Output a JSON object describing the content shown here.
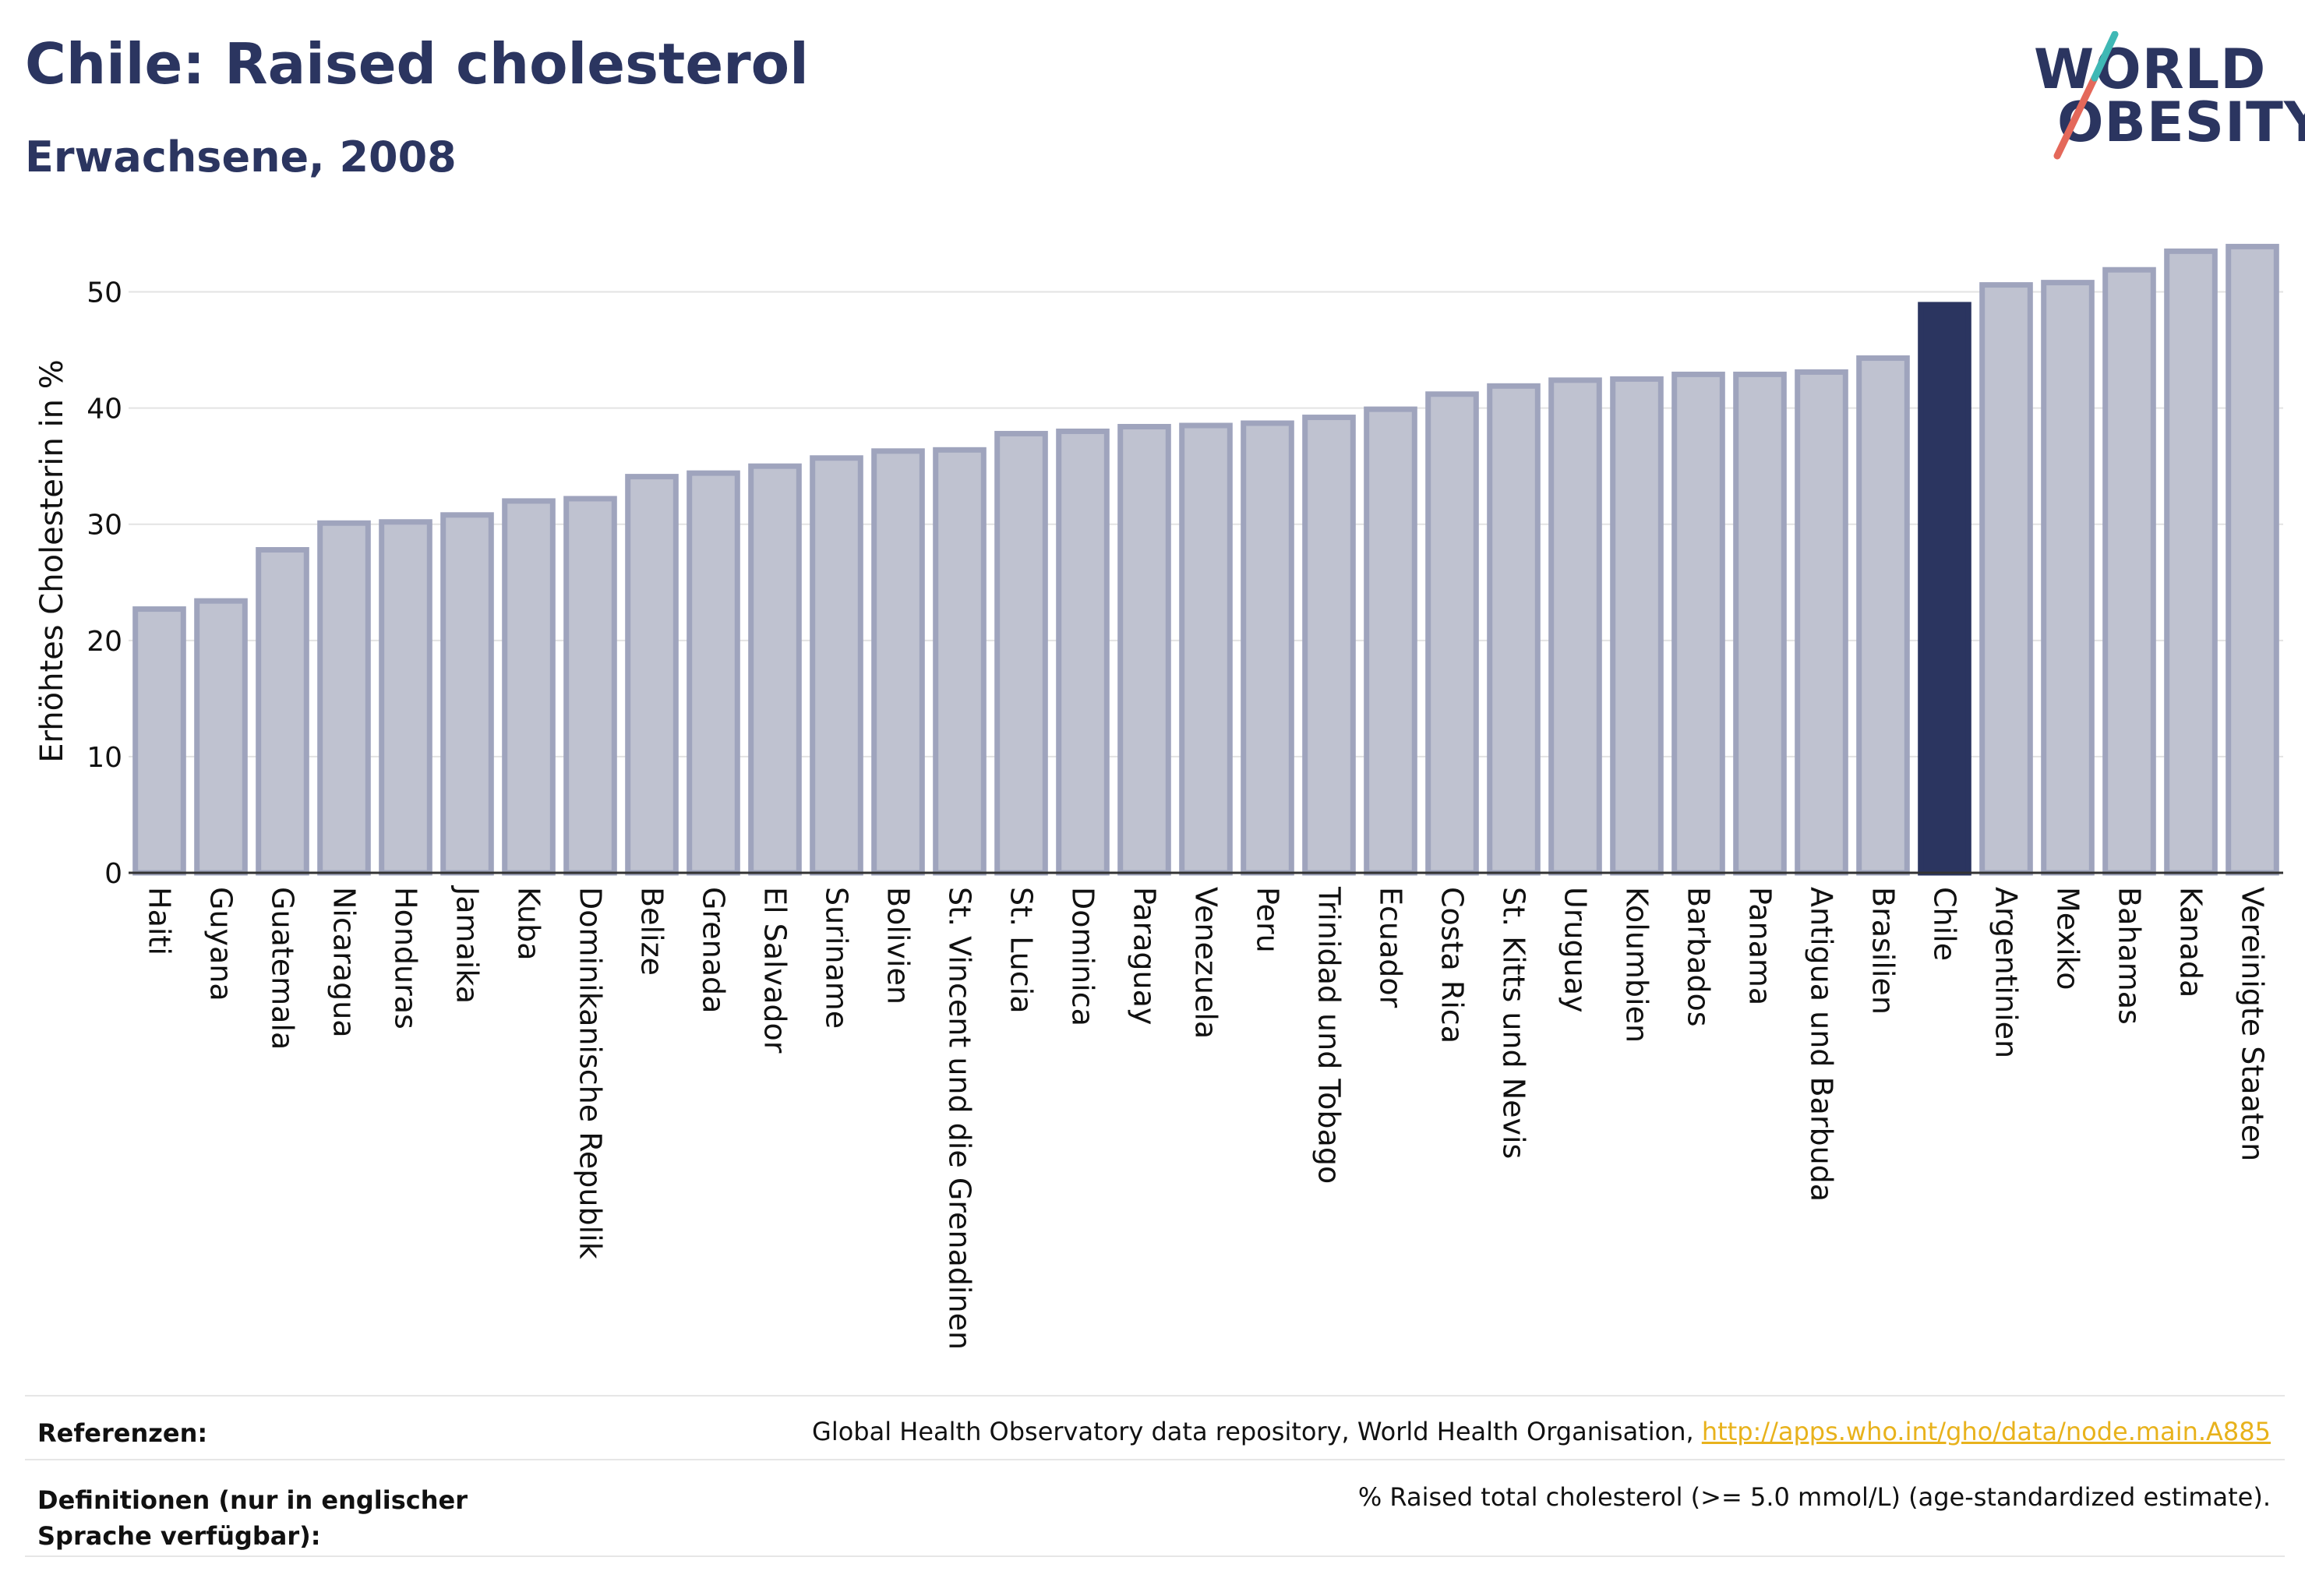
{
  "header": {
    "title": "Chile: Raised cholesterol",
    "subtitle": "Erwachsene, 2008"
  },
  "logo": {
    "line1": "WORLD",
    "line2": "OBESITY",
    "accent_colors": [
      "#e4685a",
      "#3fb8b5"
    ]
  },
  "colors": {
    "bar_default": "#bfc2d0",
    "bar_border": "#9fa4bd",
    "bar_highlight": "#2b3560",
    "text": "#2b3560",
    "link": "#e8b21c"
  },
  "chart_data": {
    "type": "bar",
    "ylabel": "Erhöhtes Cholesterin in %",
    "ylim": [
      0,
      55
    ],
    "yticks": [
      0,
      10,
      20,
      30,
      40,
      50
    ],
    "grid": true,
    "highlight": "Chile",
    "categories": [
      "Haiti",
      "Guyana",
      "Guatemala",
      "Nicaragua",
      "Honduras",
      "Jamaika",
      "Kuba",
      "Dominikanische Republik",
      "Belize",
      "Grenada",
      "El Salvador",
      "Suriname",
      "Bolivien",
      "St. Vincent und die Grenadinen",
      "St. Lucia",
      "Dominica",
      "Paraguay",
      "Venezuela",
      "Peru",
      "Trinidad und Tobago",
      "Ecuador",
      "Costa Rica",
      "St. Kitts und Nevis",
      "Uruguay",
      "Kolumbien",
      "Barbados",
      "Panama",
      "Antigua und Barbuda",
      "Brasilien",
      "Chile",
      "Argentinien",
      "Mexiko",
      "Bahamas",
      "Kanada",
      "Vereinigte Staaten"
    ],
    "values": [
      22.7,
      23.4,
      27.8,
      30.1,
      30.2,
      30.8,
      32.0,
      32.2,
      34.1,
      34.4,
      35.0,
      35.7,
      36.3,
      36.4,
      37.8,
      38.0,
      38.4,
      38.5,
      38.7,
      39.2,
      39.9,
      41.2,
      41.9,
      42.4,
      42.5,
      42.9,
      42.9,
      43.1,
      44.3,
      48.9,
      50.6,
      50.8,
      51.9,
      53.5,
      53.9
    ]
  },
  "footer": {
    "references_label": "Referenzen:",
    "references_text": "Global Health Observatory data repository, World Health Organisation, ",
    "references_link": "http://apps.who.int/gho/data/node.main.A885",
    "definitions_label": "Definitionen (nur in englischer Sprache verfügbar):",
    "definitions_text": "% Raised total cholesterol (>= 5.0 mmol/L) (age-standardized estimate)."
  }
}
